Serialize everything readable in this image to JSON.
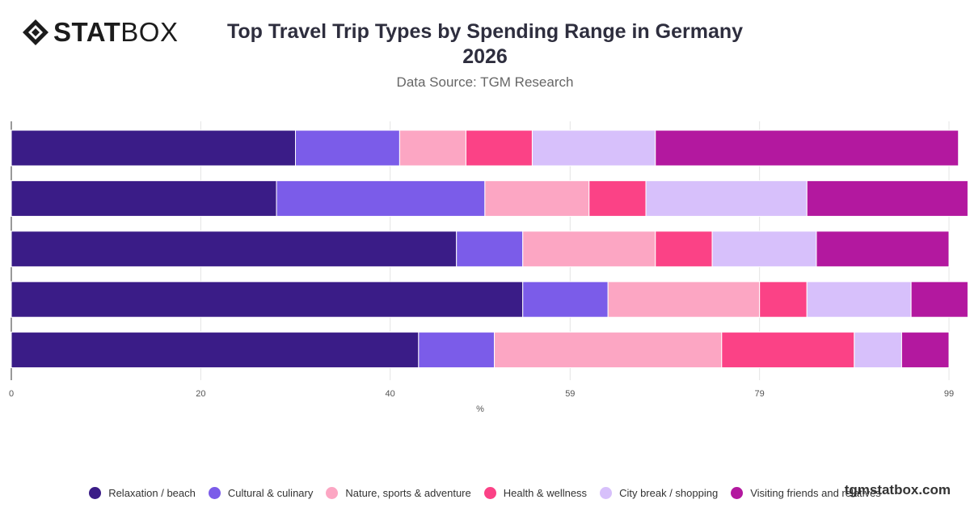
{
  "brand": {
    "bold": "STAT",
    "thin": "BOX"
  },
  "watermark": "tgmstatbox.com",
  "chart_data": {
    "type": "bar",
    "orientation": "horizontal",
    "stacked": true,
    "title": "Top Travel Trip Types by Spending Range in Germany 2026",
    "subtitle": "Data Source: TGM Research",
    "xlabel": "%",
    "ylabel": "",
    "xlim": [
      0,
      99
    ],
    "x_ticks": [
      0,
      20,
      40,
      59,
      79,
      99
    ],
    "grid": true,
    "legend_position": "bottom",
    "categories": [
      "",
      "",
      "",
      "",
      ""
    ],
    "series": [
      {
        "name": "Relaxation / beach",
        "color": "#3a1c87",
        "values": [
          30,
          28,
          47,
          54,
          43
        ]
      },
      {
        "name": "Cultural & culinary",
        "color": "#7b5ce9",
        "values": [
          11,
          22,
          7,
          9,
          8
        ]
      },
      {
        "name": "Nature, sports & adventure",
        "color": "#fca6c3",
        "values": [
          7,
          11,
          14,
          16,
          24
        ]
      },
      {
        "name": "Health & wellness",
        "color": "#fb4286",
        "values": [
          7,
          6,
          6,
          5,
          14
        ]
      },
      {
        "name": "City break / shopping",
        "color": "#d7c0fb",
        "values": [
          13,
          17,
          11,
          11,
          5
        ]
      },
      {
        "name": "Visiting friends and relatives",
        "color": "#b3189f",
        "values": [
          32,
          17,
          14,
          6,
          5
        ]
      }
    ]
  }
}
